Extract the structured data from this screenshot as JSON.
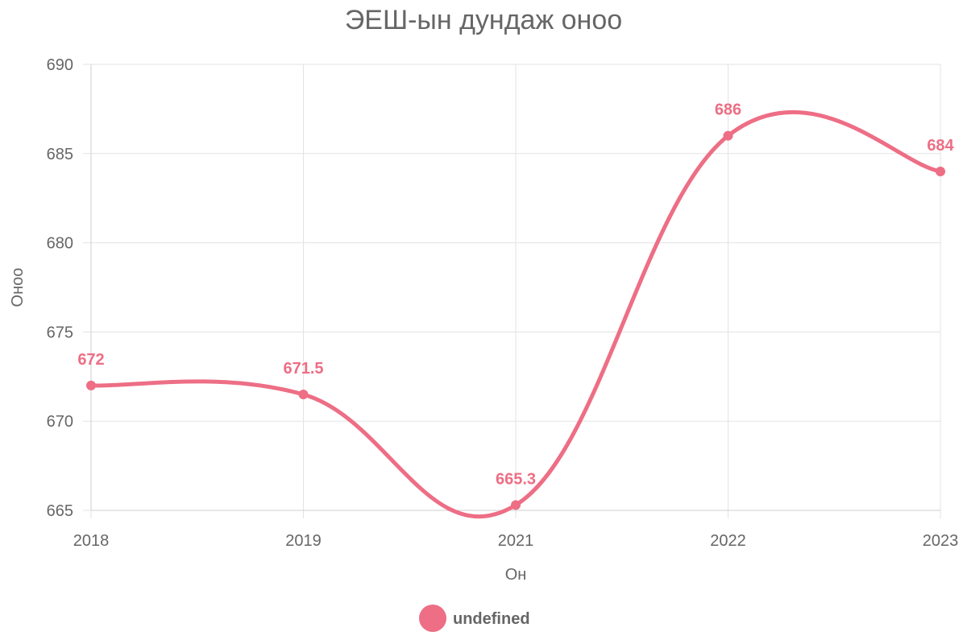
{
  "chart_data": {
    "type": "line",
    "title": "ЭЕШ-ын дундаж оноо",
    "xlabel": "Он",
    "ylabel": "Оноо",
    "categories": [
      "2018",
      "2019",
      "2021",
      "2022",
      "2023"
    ],
    "series": [
      {
        "name": "undefined",
        "values": [
          672,
          671.5,
          665.3,
          686,
          684
        ],
        "labels": [
          "672",
          "671.5",
          "665.3",
          "686",
          "684"
        ],
        "color": "#ed6e85"
      }
    ],
    "ylim": [
      665,
      690
    ],
    "yticks": [
      "665",
      "670",
      "675",
      "680",
      "685",
      "690"
    ],
    "grid": true,
    "legend_position": "bottom",
    "curve": "smooth"
  }
}
